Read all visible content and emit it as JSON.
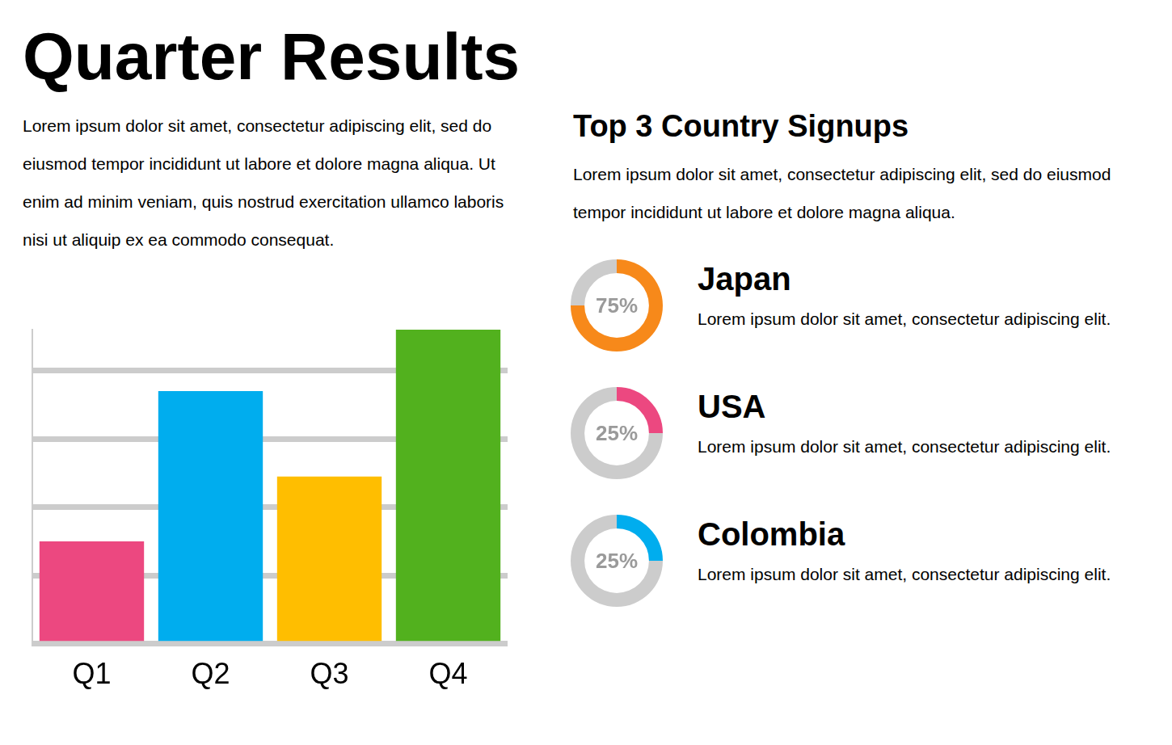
{
  "title": "Quarter Results",
  "intro": "Lorem ipsum dolor sit amet, consectetur adipiscing elit, sed do eiusmod tempor incididunt ut labore et dolore magna aliqua. Ut enim ad minim veniam, quis nostrud exercitation ullamco laboris nisi ut aliquip ex ea commodo consequat.",
  "signups": {
    "heading": "Top 3 Country Signups",
    "text": "Lorem ipsum dolor sit amet, consectetur adipiscing elit, sed do eiusmod tempor incididunt ut labore et dolore magna aliqua."
  },
  "chart_data": [
    {
      "type": "bar",
      "categories": [
        "Q1",
        "Q2",
        "Q3",
        "Q4"
      ],
      "values": [
        1.5,
        3.7,
        2.45,
        4.6
      ],
      "colors": [
        "#ec4880",
        "#00adee",
        "#ffbe00",
        "#52b11e"
      ],
      "ylim": [
        0,
        4.6
      ],
      "yticks": [
        0,
        1,
        2,
        3,
        4
      ],
      "grid": true,
      "tick_labels": "x"
    },
    {
      "type": "doughnut",
      "title": "Japan",
      "subtitle": "Lorem ipsum dolor sit amet, consectetur adipiscing elit.",
      "values": [
        75,
        25
      ],
      "value_labels": [
        "75%",
        null
      ],
      "colors": [
        "#f7891a",
        "#cccccc"
      ]
    },
    {
      "type": "doughnut",
      "title": "USA",
      "subtitle": "Lorem ipsum dolor sit amet, consectetur adipiscing elit.",
      "values": [
        25,
        75
      ],
      "value_labels": [
        "25%",
        null
      ],
      "colors": [
        "#ec4880",
        "#cccccc"
      ]
    },
    {
      "type": "doughnut",
      "title": "Colombia",
      "subtitle": "Lorem ipsum dolor sit amet, consectetur adipiscing elit.",
      "values": [
        25,
        75
      ],
      "value_labels": [
        "25%",
        null
      ],
      "colors": [
        "#00adee",
        "#cccccc"
      ]
    }
  ]
}
